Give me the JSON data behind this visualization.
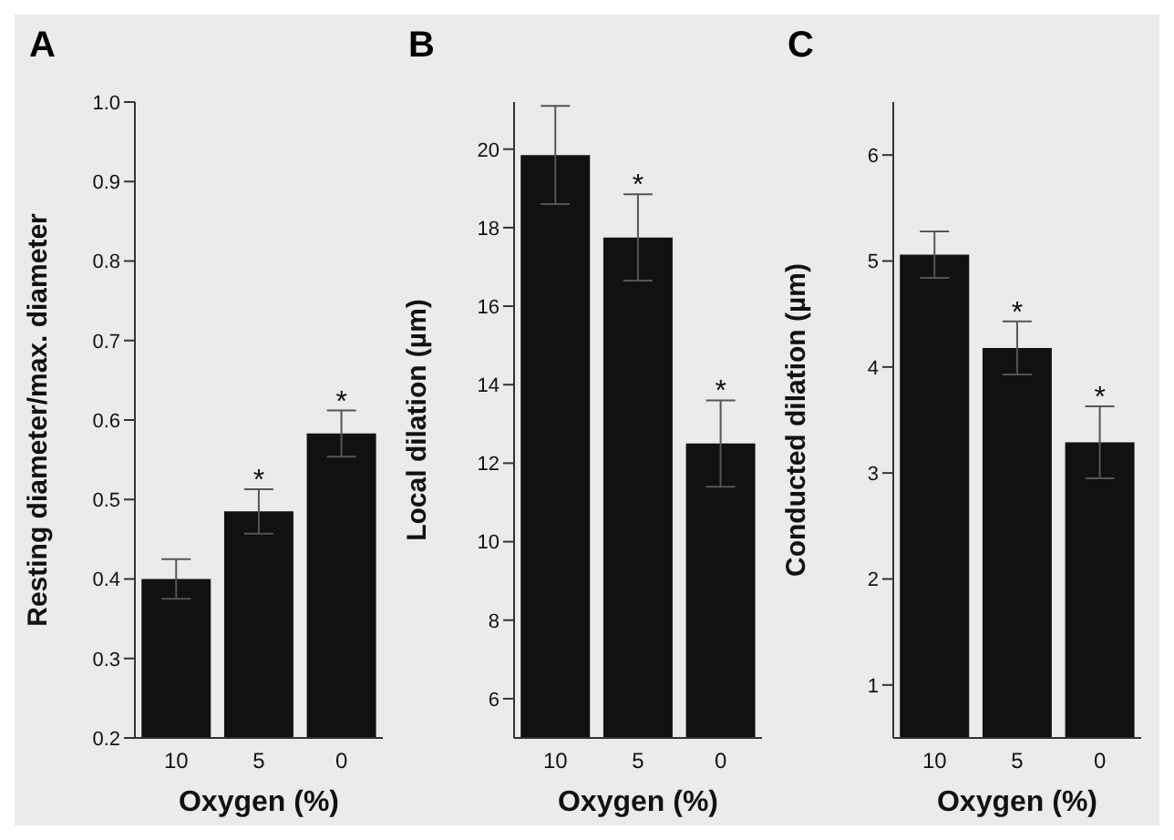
{
  "chart_data": [
    {
      "type": "bar",
      "title": "A",
      "xlabel": "Oxygen (%)",
      "ylabel": "Resting diameter/max. diameter",
      "categories": [
        "10",
        "5",
        "0"
      ],
      "values": [
        0.4,
        0.485,
        0.583
      ],
      "errors": [
        0.025,
        0.028,
        0.029
      ],
      "color": "#111111",
      "ylim": [
        0.2,
        1.0
      ],
      "yticks": [
        0.2,
        0.3,
        0.4,
        0.5,
        0.6,
        0.7,
        0.8,
        0.9,
        {
          "value": 1,
          "label": "1.0"
        }
      ],
      "grid": false,
      "legend": false,
      "annotations": [
        {
          "text": "*",
          "x": "5",
          "y": 0.513
        },
        {
          "text": "*",
          "x": "0",
          "y": 0.612
        }
      ]
    },
    {
      "type": "bar",
      "title": "B",
      "xlabel": "Oxygen (%)",
      "ylabel": "Local dilation (µm)",
      "categories": [
        "10",
        "5",
        "0"
      ],
      "values": [
        19.85,
        17.75,
        12.5
      ],
      "errors": [
        1.25,
        1.1,
        1.1
      ],
      "color": "#111111",
      "ylim": [
        5,
        21.2
      ],
      "yticks": [
        6,
        8,
        10,
        12,
        14,
        16,
        18,
        20
      ],
      "grid": false,
      "legend": false,
      "annotations": [
        {
          "text": "*",
          "x": "5",
          "y": 18.85
        },
        {
          "text": "*",
          "x": "0",
          "y": 13.6
        }
      ]
    },
    {
      "type": "bar",
      "title": "C",
      "xlabel": "Oxygen (%)",
      "ylabel": "Conducted dilation (µm)",
      "categories": [
        "10",
        "5",
        "0"
      ],
      "values": [
        5.06,
        4.18,
        3.29
      ],
      "errors": [
        0.22,
        0.25,
        0.34
      ],
      "color": "#111111",
      "ylim": [
        0.5,
        6.5
      ],
      "yticks": [
        1,
        2,
        3,
        4,
        5,
        6
      ],
      "grid": false,
      "legend": false,
      "annotations": [
        {
          "text": "*",
          "x": "5",
          "y": 4.43
        },
        {
          "text": "*",
          "x": "0",
          "y": 3.63
        }
      ]
    }
  ]
}
